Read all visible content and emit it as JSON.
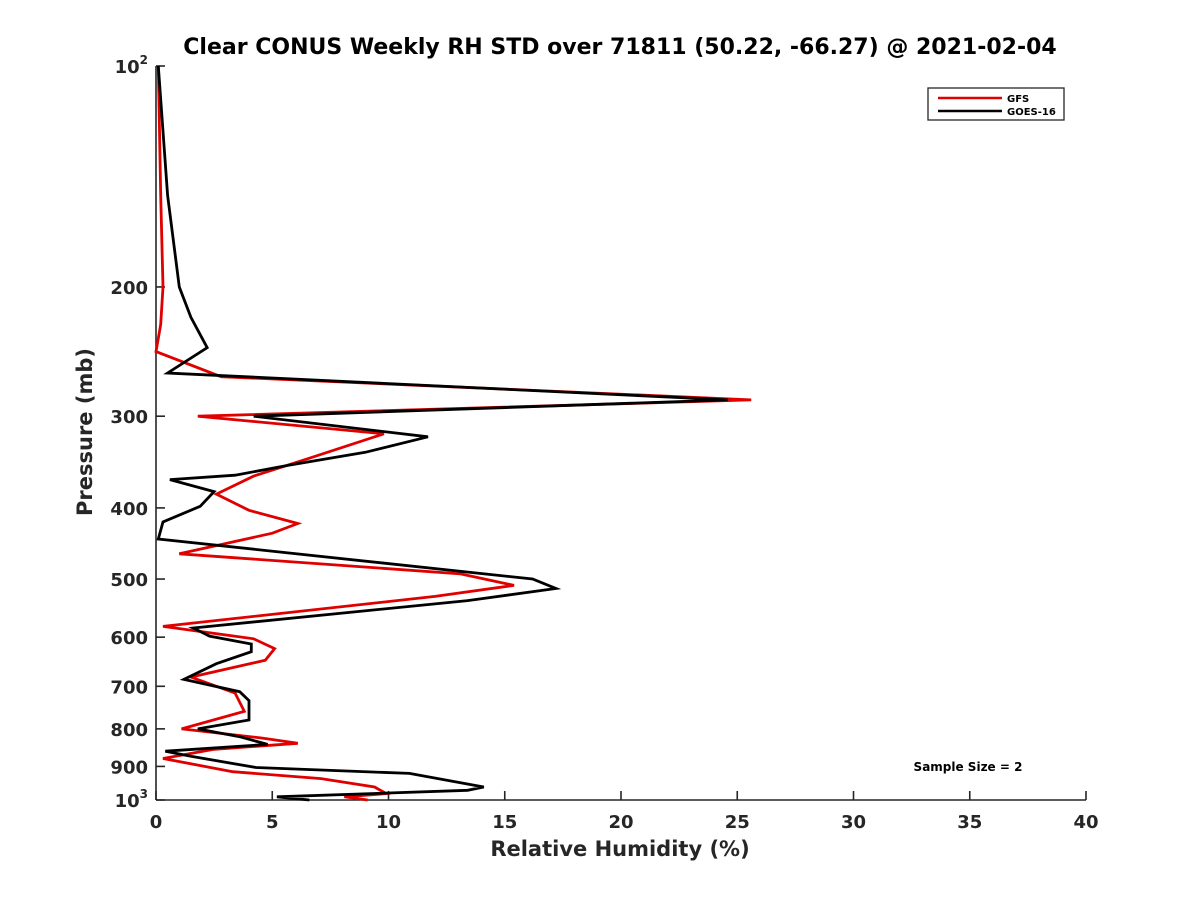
{
  "chart_data": {
    "type": "line",
    "title": "Clear CONUS Weekly RH STD over 71811 (50.22, -66.27) @ 2021-02-04",
    "xlabel": "Relative Humidity (%)",
    "ylabel": "Pressure (mb)",
    "xlim": [
      0,
      40
    ],
    "ylim": [
      100,
      1000
    ],
    "y_scale": "log",
    "y_reversed": true,
    "x_ticks": [
      0,
      5,
      10,
      15,
      20,
      25,
      30,
      35,
      40
    ],
    "x_tick_labels": [
      "0",
      "5",
      "10",
      "15",
      "20",
      "25",
      "30",
      "35",
      "40"
    ],
    "y_ticks": [
      100,
      200,
      300,
      400,
      500,
      600,
      700,
      800,
      900,
      1000
    ],
    "y_tick_labels": [
      {
        "base": "10",
        "exp": "2"
      },
      {
        "base": "200",
        "exp": ""
      },
      {
        "base": "300",
        "exp": ""
      },
      {
        "base": "400",
        "exp": ""
      },
      {
        "base": "500",
        "exp": ""
      },
      {
        "base": "600",
        "exp": ""
      },
      {
        "base": "700",
        "exp": ""
      },
      {
        "base": "800",
        "exp": ""
      },
      {
        "base": "900",
        "exp": ""
      },
      {
        "base": "10",
        "exp": "3"
      }
    ],
    "grid": false,
    "legend_position": "top-right",
    "annotation": "Sample Size = 2",
    "series": [
      {
        "name": "GFS",
        "color": "#e00000",
        "points": [
          [
            0.1,
            100
          ],
          [
            0.2,
            150
          ],
          [
            0.3,
            200
          ],
          [
            0.2,
            225
          ],
          [
            0.0,
            245
          ],
          [
            2.8,
            265
          ],
          [
            25.6,
            285
          ],
          [
            1.8,
            300
          ],
          [
            9.8,
            317
          ],
          [
            6.5,
            343
          ],
          [
            4.2,
            362
          ],
          [
            2.6,
            383
          ],
          [
            4.0,
            403
          ],
          [
            6.1,
            420
          ],
          [
            5.0,
            433
          ],
          [
            1.0,
            462
          ],
          [
            13.1,
            492
          ],
          [
            15.4,
            510
          ],
          [
            12.0,
            528
          ],
          [
            0.3,
            580
          ],
          [
            4.2,
            603
          ],
          [
            5.1,
            622
          ],
          [
            4.7,
            645
          ],
          [
            1.5,
            680
          ],
          [
            3.4,
            715
          ],
          [
            3.8,
            757
          ],
          [
            1.1,
            800
          ],
          [
            4.5,
            823
          ],
          [
            6.1,
            837
          ],
          [
            2.5,
            853
          ],
          [
            0.3,
            878
          ],
          [
            3.3,
            915
          ],
          [
            7.1,
            935
          ],
          [
            9.4,
            960
          ],
          [
            9.9,
            980
          ],
          [
            8.1,
            990
          ],
          [
            9.1,
            1000
          ]
        ]
      },
      {
        "name": "GOES-16",
        "color": "#000000",
        "points": [
          [
            0.1,
            100
          ],
          [
            0.5,
            150
          ],
          [
            1.0,
            200
          ],
          [
            1.5,
            220
          ],
          [
            2.2,
            242
          ],
          [
            0.5,
            262
          ],
          [
            24.6,
            285
          ],
          [
            4.2,
            300
          ],
          [
            11.7,
            320
          ],
          [
            9.0,
            336
          ],
          [
            5.7,
            350
          ],
          [
            3.4,
            361
          ],
          [
            0.6,
            366
          ],
          [
            2.5,
            380
          ],
          [
            1.9,
            398
          ],
          [
            0.3,
            418
          ],
          [
            0.1,
            441
          ],
          [
            16.2,
            500
          ],
          [
            17.2,
            515
          ],
          [
            13.4,
            535
          ],
          [
            1.6,
            583
          ],
          [
            2.3,
            598
          ],
          [
            4.1,
            613
          ],
          [
            4.1,
            628
          ],
          [
            2.6,
            652
          ],
          [
            1.2,
            685
          ],
          [
            3.6,
            712
          ],
          [
            4.0,
            732
          ],
          [
            4.0,
            778
          ],
          [
            1.8,
            800
          ],
          [
            3.6,
            820
          ],
          [
            4.8,
            840
          ],
          [
            0.4,
            858
          ],
          [
            1.5,
            872
          ],
          [
            4.3,
            903
          ],
          [
            10.9,
            920
          ],
          [
            14.1,
            960
          ],
          [
            13.4,
            970
          ],
          [
            5.2,
            990
          ],
          [
            6.6,
            1000
          ]
        ]
      }
    ]
  }
}
